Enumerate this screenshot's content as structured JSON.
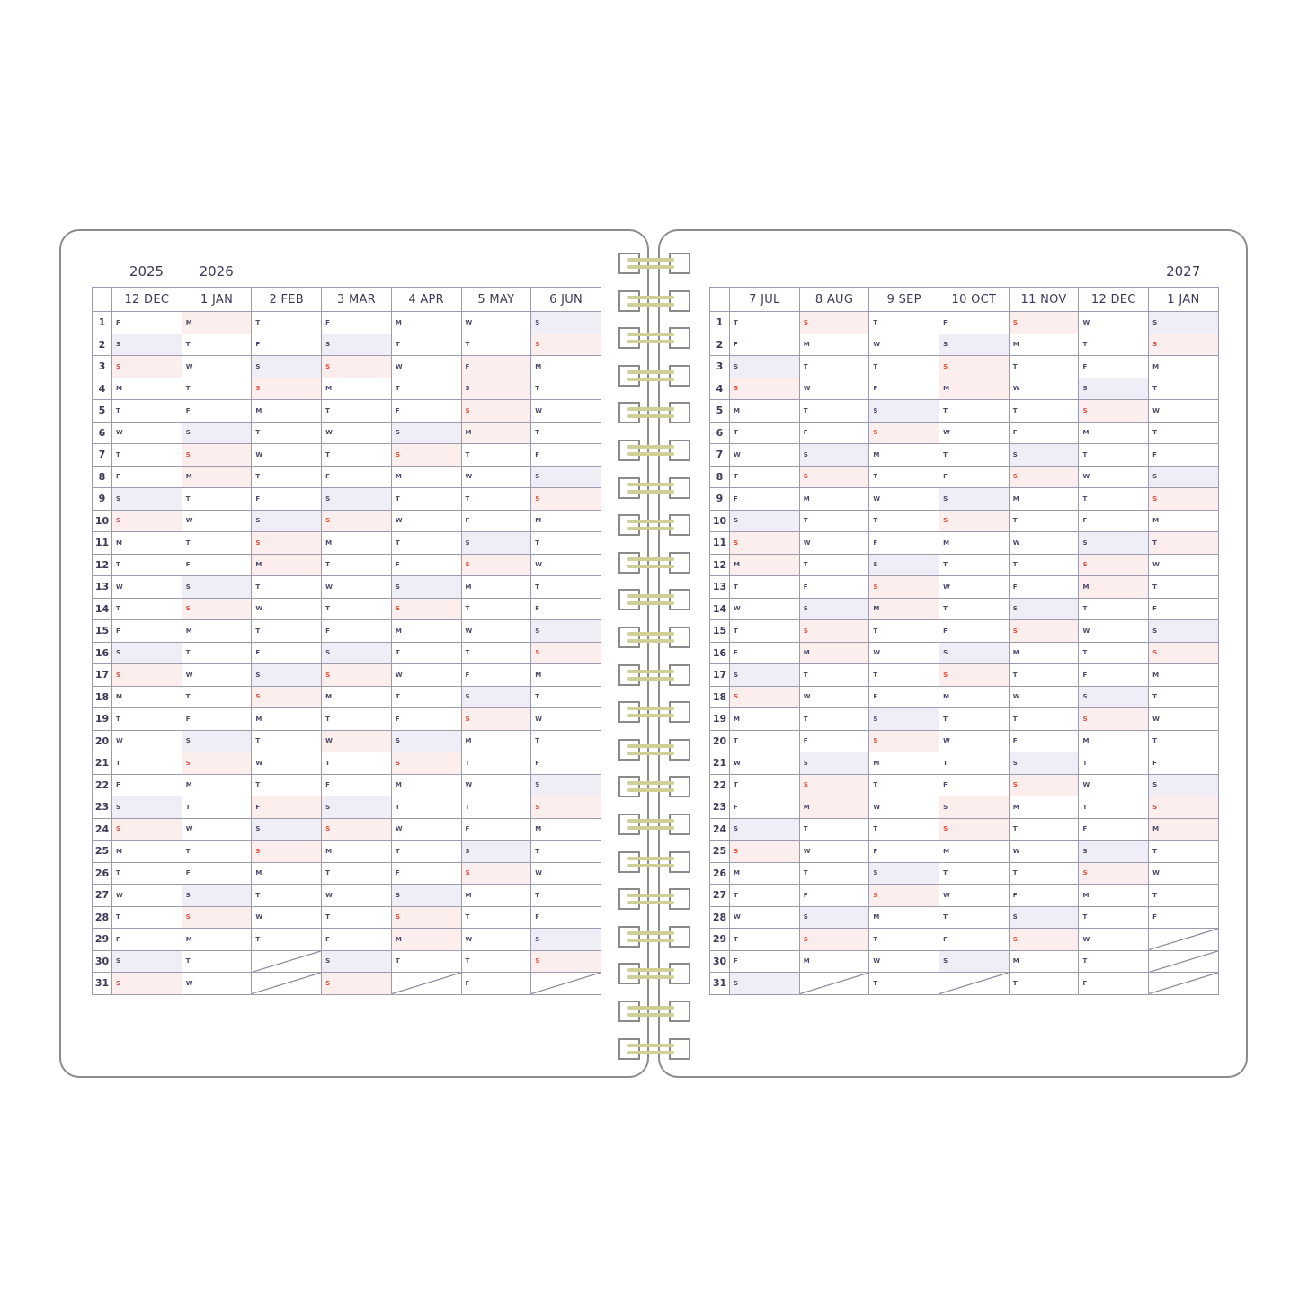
{
  "colors": {
    "saturday": "#efedf5",
    "sunday_holiday": "#fdeeee",
    "sunday_text": "#e0503e",
    "ring": "#cfcf96",
    "border": "#8c8c8c"
  },
  "left_page": {
    "years": [
      {
        "label": "2025",
        "col": 0
      },
      {
        "label": "2026",
        "col": 1
      }
    ],
    "months": [
      {
        "label": "12 DEC",
        "days": "FSSMTWTFSSMTWTFSSMTWTFSSMTWTFSS",
        "holidays": []
      },
      {
        "label": "1 JAN",
        "days": "MTWTFSSMTWTFSSMTWTFSSMTWTFSSMTW",
        "holidays": [
          1,
          8
        ]
      },
      {
        "label": "2 FEB",
        "days": "TFSSMTWTFSSMTWTFSSMTWTFSSMTWT",
        "holidays": [
          12,
          23
        ]
      },
      {
        "label": "3 MAR",
        "days": "FSSMTWTFSSMTWTFSSMTWTFSSMTWTFSS",
        "holidays": [
          20
        ]
      },
      {
        "label": "4 APR",
        "days": "MTWTFSSMTWTFSSMTWTFSSMTWTFSSMT",
        "holidays": [
          29
        ]
      },
      {
        "label": "5 MAY",
        "days": "WTFSSMTWTFSSMTWTFSSMTWTFSSMTWTF",
        "holidays": [
          3,
          4,
          6
        ]
      },
      {
        "label": "6 JUN",
        "days": "SSMTWTFSSMTWTFSSMTWTFSSMTWTFSS",
        "holidays": []
      }
    ]
  },
  "right_page": {
    "years": [
      {
        "label": "2027",
        "col": 6
      }
    ],
    "months": [
      {
        "label": "7 JUL",
        "days": "TFSSMTWTFSSMTWTFSSMTWTFSSMTWTFS",
        "holidays": [
          12
        ]
      },
      {
        "label": "8 AUG",
        "days": "SMTWTFSSMTWTFSSMTWTFSSMTWTFSSM",
        "holidays": [
          16,
          23
        ]
      },
      {
        "label": "9 SEP",
        "days": "TWTFSSMTWTFSSMTWTFSSMTWTFSSMTWT",
        "holidays": [
          14
        ]
      },
      {
        "label": "10 OCT",
        "days": "FSSMTWTFSSMTWTFSSMTWTFSSMTWTFS",
        "holidays": [
          4,
          23
        ]
      },
      {
        "label": "11 NOV",
        "days": "SMTWTFSSMTWTFSSMTWTFSSMTWTFSSMT",
        "holidays": []
      },
      {
        "label": "12 DEC",
        "days": "WTFSSMTWTFSSMTWTFSSMTWTFSSMTWTF",
        "holidays": [
          13
        ]
      },
      {
        "label": "1 JAN",
        "days": "SSMTWTFSSMTWTFSSMTWTFSSMTWTF",
        "holidays": [
          11,
          24
        ]
      }
    ]
  },
  "row_numbers": [
    "1",
    "2",
    "3",
    "4",
    "5",
    "6",
    "7",
    "8",
    "9",
    "10",
    "11",
    "12",
    "13",
    "14",
    "15",
    "16",
    "17",
    "18",
    "19",
    "20",
    "21",
    "22",
    "23",
    "24",
    "25",
    "26",
    "27",
    "28",
    "29",
    "30",
    "31"
  ],
  "spiral_rings": 22
}
